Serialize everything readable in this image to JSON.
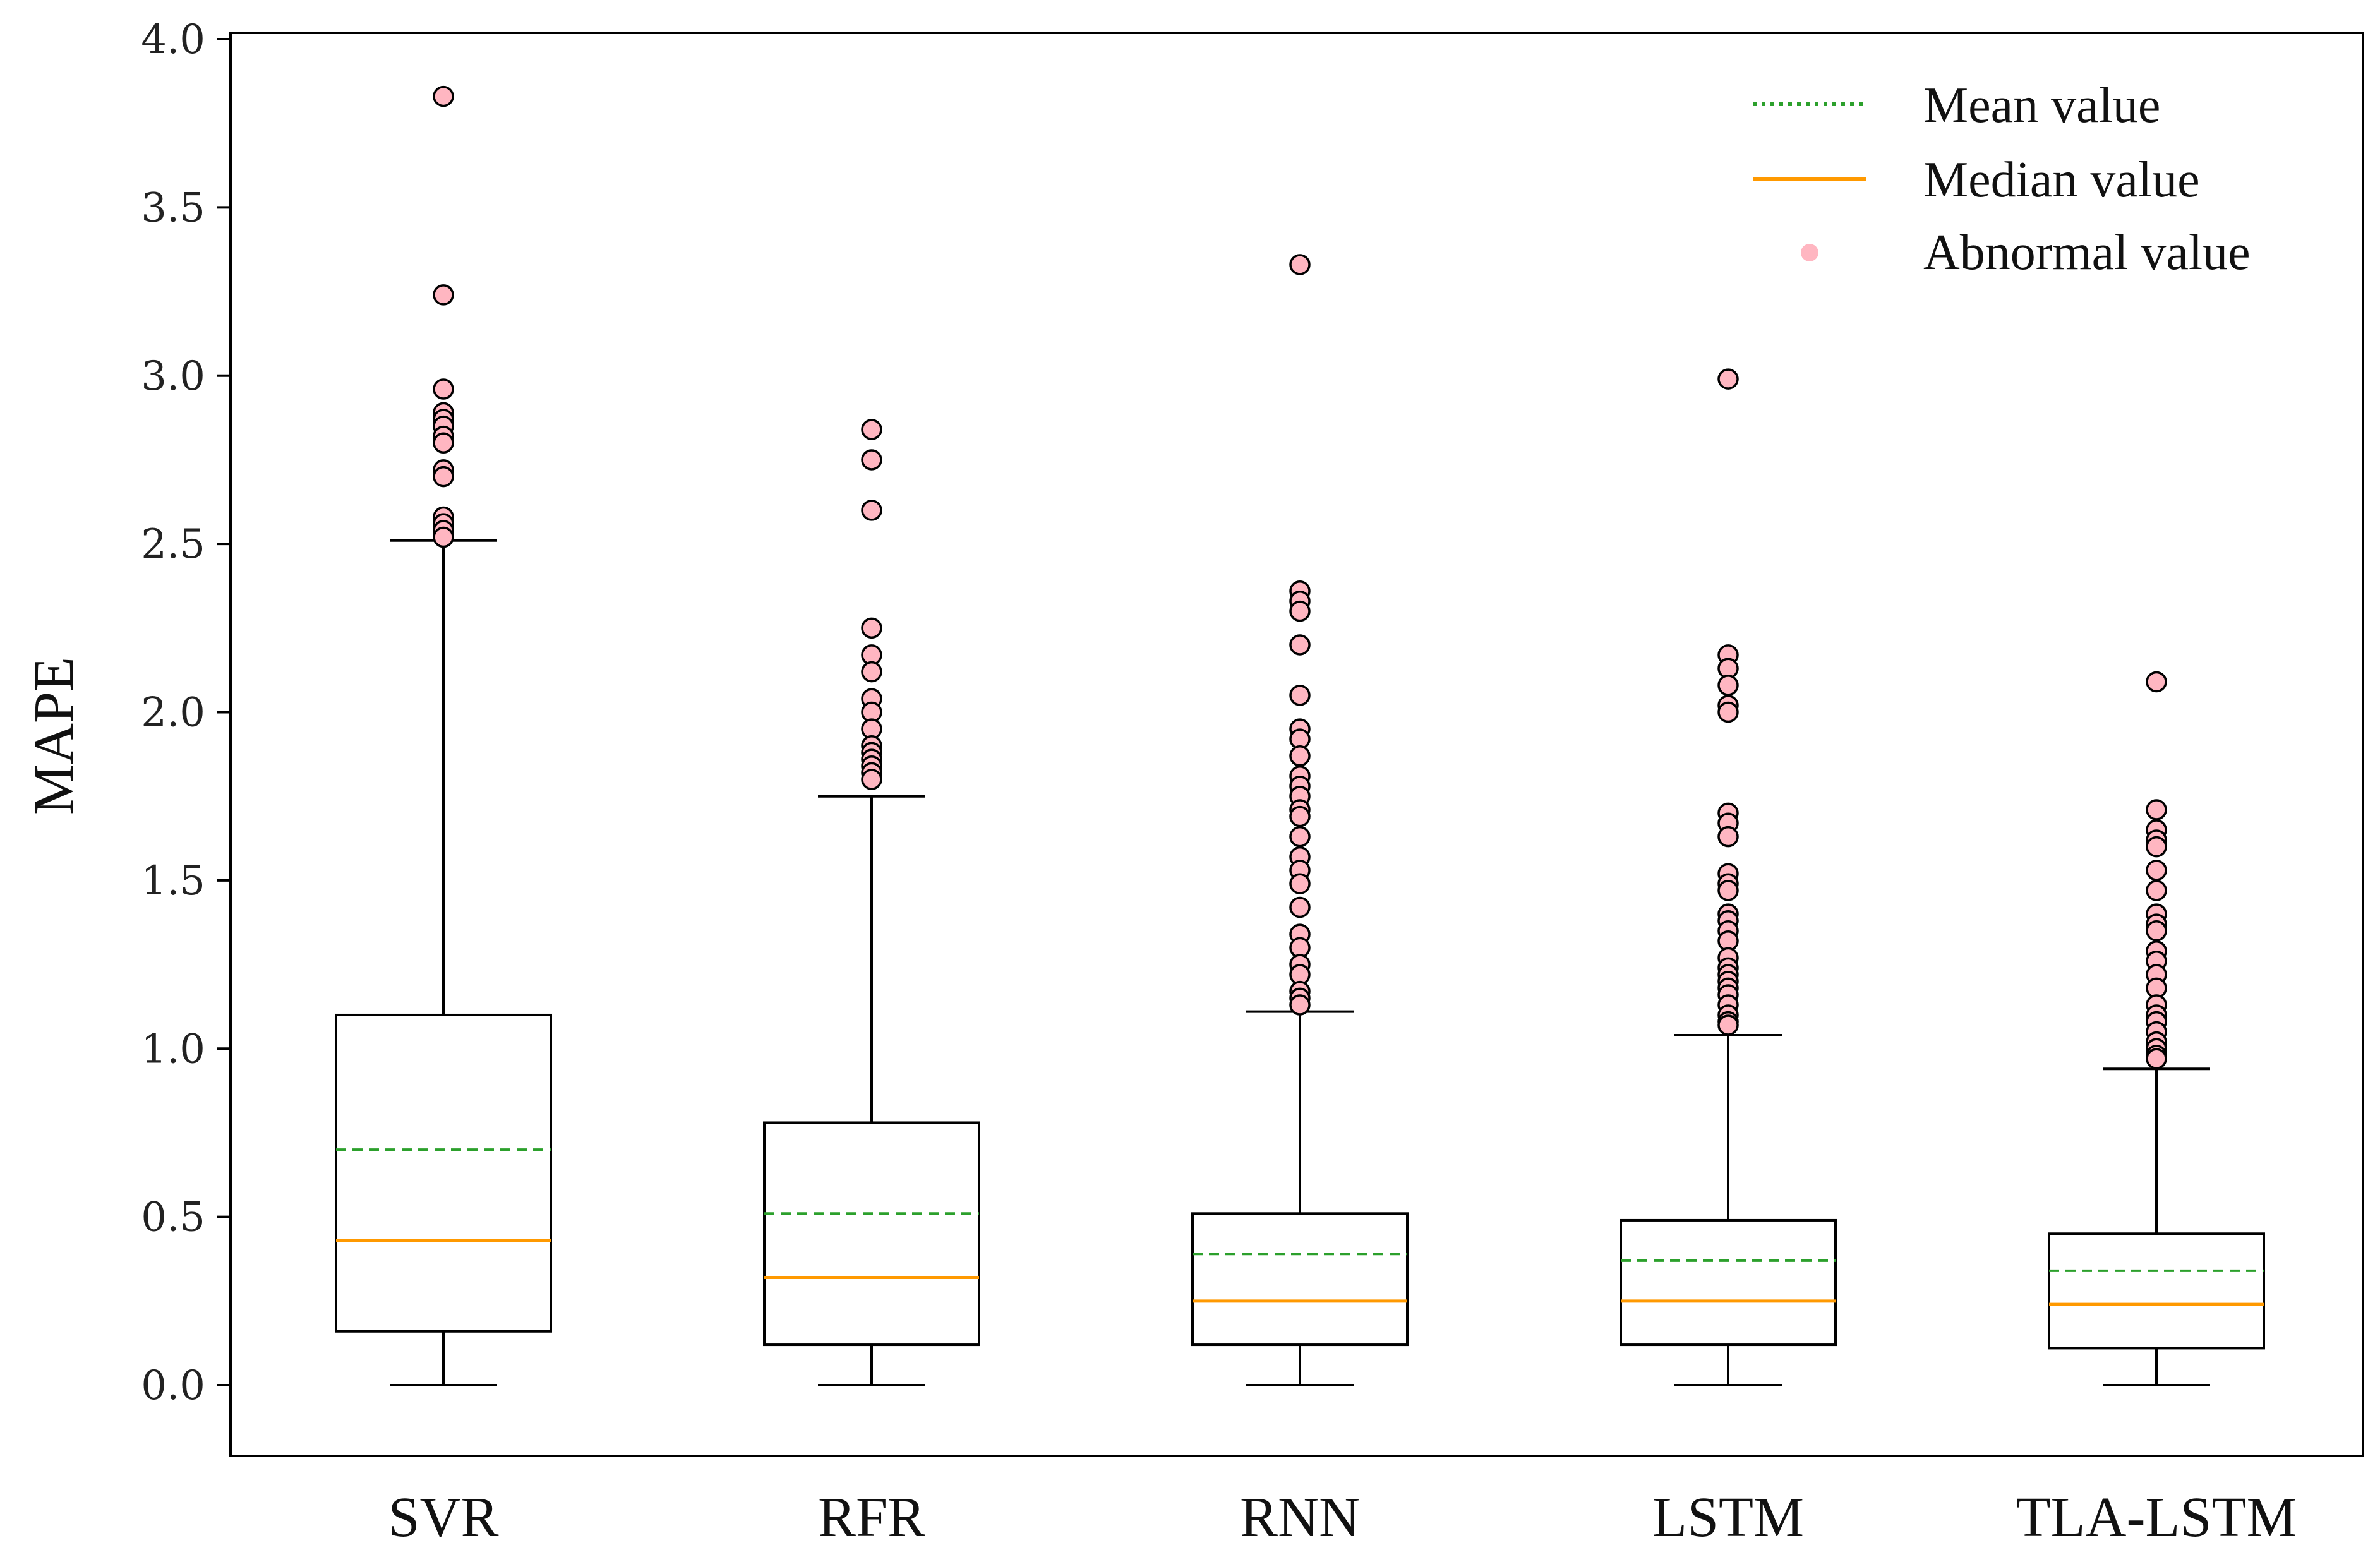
{
  "chart_data": {
    "type": "box",
    "title": "",
    "xlabel": "",
    "ylabel": "MAPE",
    "ylim": [
      -0.18,
      4.05
    ],
    "yticks": [
      0.0,
      0.5,
      1.0,
      1.5,
      2.0,
      2.5,
      3.0,
      3.5,
      4.0
    ],
    "ytick_labels": [
      "0.0",
      "0.5",
      "1.0",
      "1.5",
      "2.0",
      "2.5",
      "3.0",
      "3.5",
      "4.0"
    ],
    "categories": [
      "SVR",
      "RFR",
      "RNN",
      "LSTM",
      "TLA-LSTM"
    ],
    "colors": {
      "box": "#000000",
      "median": "#ff9900",
      "mean": "#2ca02c",
      "outlier": "#ffb6c1"
    },
    "legend": {
      "position": "top-right",
      "items": [
        {
          "label": "Mean value",
          "kind": "mean"
        },
        {
          "label": "Median value",
          "kind": "median"
        },
        {
          "label": "Abnormal value",
          "kind": "outlier"
        }
      ]
    },
    "boxes": [
      {
        "name": "SVR",
        "whisker_low": 0.0,
        "q1": 0.16,
        "median": 0.43,
        "mean": 0.7,
        "q3": 1.1,
        "whisker_high": 2.51,
        "outliers": [
          3.83,
          3.24,
          2.96,
          2.89,
          2.87,
          2.85,
          2.82,
          2.8,
          2.72,
          2.7,
          2.58,
          2.56,
          2.54,
          2.52
        ]
      },
      {
        "name": "RFR",
        "whisker_low": 0.0,
        "q1": 0.12,
        "median": 0.32,
        "mean": 0.51,
        "q3": 0.78,
        "whisker_high": 1.75,
        "outliers": [
          2.84,
          2.75,
          2.6,
          2.25,
          2.17,
          2.12,
          2.04,
          2.0,
          1.95,
          1.9,
          1.88,
          1.86,
          1.84,
          1.82,
          1.8
        ]
      },
      {
        "name": "RNN",
        "whisker_low": 0.0,
        "q1": 0.12,
        "median": 0.25,
        "mean": 0.39,
        "q3": 0.51,
        "whisker_high": 1.11,
        "outliers": [
          3.33,
          2.36,
          2.33,
          2.3,
          2.2,
          2.05,
          1.95,
          1.92,
          1.87,
          1.81,
          1.78,
          1.75,
          1.71,
          1.69,
          1.63,
          1.57,
          1.53,
          1.49,
          1.42,
          1.34,
          1.3,
          1.25,
          1.22,
          1.17,
          1.15,
          1.13
        ]
      },
      {
        "name": "LSTM",
        "whisker_low": 0.0,
        "q1": 0.12,
        "median": 0.25,
        "mean": 0.37,
        "q3": 0.49,
        "whisker_high": 1.04,
        "outliers": [
          2.99,
          2.17,
          2.13,
          2.08,
          2.02,
          2.0,
          1.7,
          1.67,
          1.63,
          1.52,
          1.49,
          1.47,
          1.4,
          1.38,
          1.35,
          1.32,
          1.27,
          1.24,
          1.22,
          1.2,
          1.18,
          1.16,
          1.13,
          1.1,
          1.08,
          1.07
        ]
      },
      {
        "name": "TLA-LSTM",
        "whisker_low": 0.0,
        "q1": 0.11,
        "median": 0.24,
        "mean": 0.34,
        "q3": 0.45,
        "whisker_high": 0.94,
        "outliers": [
          2.09,
          1.71,
          1.65,
          1.62,
          1.6,
          1.53,
          1.47,
          1.4,
          1.37,
          1.35,
          1.29,
          1.26,
          1.22,
          1.18,
          1.13,
          1.1,
          1.08,
          1.05,
          1.02,
          1.0,
          0.98,
          0.97
        ]
      }
    ]
  }
}
